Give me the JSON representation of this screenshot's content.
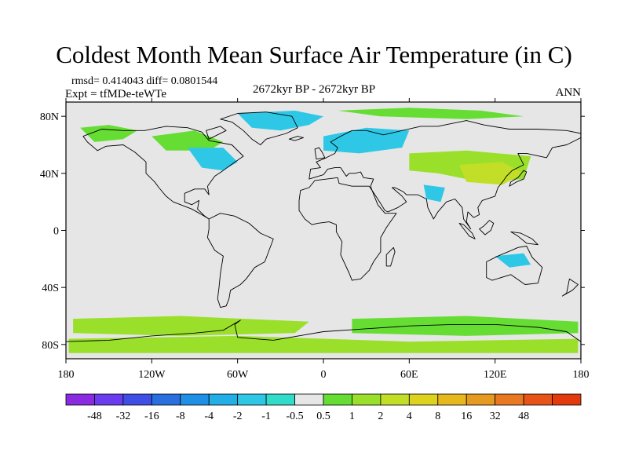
{
  "title": "Coldest Month Mean Surface Air Temperature (in C)",
  "stats_line": "rmsd= 0.414043  diff= 0.0801544",
  "experiment": "Expt = tfMDe-teWTe",
  "period": "2672kyr BP - 2672kyr BP",
  "season": "ANN",
  "map": {
    "lon_range": [
      -180,
      180
    ],
    "lat_range": [
      -90,
      90
    ],
    "background_color": "#e6e6e6",
    "lon_ticks": [
      {
        "value": -180,
        "label": "180"
      },
      {
        "value": -120,
        "label": "120W"
      },
      {
        "value": -60,
        "label": "60W"
      },
      {
        "value": 0,
        "label": "0"
      },
      {
        "value": 60,
        "label": "60E"
      },
      {
        "value": 120,
        "label": "120E"
      },
      {
        "value": 180,
        "label": "180"
      }
    ],
    "lat_ticks": [
      {
        "value": 80,
        "label": "80N"
      },
      {
        "value": 40,
        "label": "40N"
      },
      {
        "value": 0,
        "label": "0"
      },
      {
        "value": -40,
        "label": "40S"
      },
      {
        "value": -80,
        "label": "80S"
      }
    ]
  },
  "colorbar": {
    "colors": [
      "#8a2be2",
      "#6a3cf0",
      "#3f4fe6",
      "#2a6fe0",
      "#1e90e6",
      "#22aee6",
      "#2ec8e6",
      "#33dcc8",
      "#e6e6e6",
      "#66dd33",
      "#9ae02a",
      "#c2de26",
      "#ddd21e",
      "#e6b81e",
      "#e69a22",
      "#e87822",
      "#e85418",
      "#e23a0c"
    ],
    "labels": [
      "-48",
      "-32",
      "-16",
      "-8",
      "-4",
      "-2",
      "-1",
      "-0.5",
      "0.5",
      "1",
      "2",
      "4",
      "8",
      "16",
      "32",
      "48"
    ]
  },
  "regions": [
    {
      "name": "arctic-greenland",
      "color": "#2ec8e6",
      "points": [
        [
          -60,
          82
        ],
        [
          -20,
          84
        ],
        [
          0,
          80
        ],
        [
          -10,
          74
        ],
        [
          -30,
          70
        ],
        [
          -50,
          72
        ]
      ]
    },
    {
      "name": "arctic-siberia",
      "color": "#66dd33",
      "points": [
        [
          10,
          84
        ],
        [
          60,
          86
        ],
        [
          110,
          84
        ],
        [
          140,
          80
        ],
        [
          100,
          78
        ],
        [
          40,
          80
        ]
      ]
    },
    {
      "name": "alaska",
      "color": "#66dd33",
      "points": [
        [
          -170,
          72
        ],
        [
          -150,
          74
        ],
        [
          -130,
          70
        ],
        [
          -140,
          64
        ],
        [
          -160,
          62
        ]
      ]
    },
    {
      "name": "canada",
      "color": "#66dd33",
      "points": [
        [
          -120,
          66
        ],
        [
          -90,
          70
        ],
        [
          -70,
          62
        ],
        [
          -80,
          56
        ],
        [
          -110,
          56
        ]
      ]
    },
    {
      "name": "eastern-north-america",
      "color": "#2ec8e6",
      "points": [
        [
          -95,
          58
        ],
        [
          -70,
          58
        ],
        [
          -60,
          48
        ],
        [
          -70,
          42
        ],
        [
          -85,
          44
        ]
      ]
    },
    {
      "name": "scandinavia-europe",
      "color": "#2ec8e6",
      "points": [
        [
          0,
          66
        ],
        [
          30,
          72
        ],
        [
          60,
          70
        ],
        [
          55,
          58
        ],
        [
          25,
          54
        ],
        [
          0,
          56
        ]
      ]
    },
    {
      "name": "asia",
      "color": "#9ae02a",
      "points": [
        [
          60,
          54
        ],
        [
          100,
          56
        ],
        [
          145,
          52
        ],
        [
          140,
          36
        ],
        [
          110,
          34
        ],
        [
          80,
          40
        ],
        [
          60,
          42
        ]
      ]
    },
    {
      "name": "east-asia",
      "color": "#c2de26",
      "points": [
        [
          95,
          46
        ],
        [
          125,
          48
        ],
        [
          140,
          40
        ],
        [
          125,
          32
        ],
        [
          100,
          34
        ]
      ]
    },
    {
      "name": "india",
      "color": "#2ec8e6",
      "points": [
        [
          70,
          32
        ],
        [
          85,
          30
        ],
        [
          82,
          20
        ],
        [
          72,
          22
        ]
      ]
    },
    {
      "name": "australia",
      "color": "#2ec8e6",
      "points": [
        [
          120,
          -18
        ],
        [
          140,
          -16
        ],
        [
          145,
          -24
        ],
        [
          130,
          -26
        ]
      ]
    },
    {
      "name": "southern-ocean-west",
      "color": "#9ae02a",
      "points": [
        [
          -175,
          -62
        ],
        [
          -100,
          -60
        ],
        [
          -10,
          -64
        ],
        [
          -20,
          -72
        ],
        [
          -100,
          -74
        ],
        [
          -175,
          -72
        ]
      ]
    },
    {
      "name": "southern-ocean-east",
      "color": "#66dd33",
      "points": [
        [
          20,
          -62
        ],
        [
          100,
          -60
        ],
        [
          178,
          -64
        ],
        [
          178,
          -72
        ],
        [
          100,
          -74
        ],
        [
          20,
          -72
        ]
      ]
    },
    {
      "name": "antarctica",
      "color": "#9ae02a",
      "points": [
        [
          -178,
          -76
        ],
        [
          -60,
          -74
        ],
        [
          60,
          -78
        ],
        [
          178,
          -76
        ],
        [
          178,
          -86
        ],
        [
          -178,
          -86
        ]
      ]
    }
  ],
  "landmasses": [
    {
      "name": "north-america",
      "points": [
        [
          -168,
          66
        ],
        [
          -155,
          71
        ],
        [
          -140,
          70
        ],
        [
          -125,
          70
        ],
        [
          -110,
          73
        ],
        [
          -95,
          72
        ],
        [
          -85,
          69
        ],
        [
          -80,
          63
        ],
        [
          -64,
          60
        ],
        [
          -56,
          52
        ],
        [
          -66,
          45
        ],
        [
          -70,
          42
        ],
        [
          -76,
          38
        ],
        [
          -81,
          31
        ],
        [
          -80,
          25
        ],
        [
          -83,
          29
        ],
        [
          -90,
          29
        ],
        [
          -97,
          26
        ],
        [
          -97,
          20
        ],
        [
          -92,
          18
        ],
        [
          -87,
          21
        ],
        [
          -88,
          15
        ],
        [
          -83,
          10
        ],
        [
          -80,
          8
        ],
        [
          -85,
          11
        ],
        [
          -92,
          15
        ],
        [
          -105,
          20
        ],
        [
          -110,
          24
        ],
        [
          -115,
          30
        ],
        [
          -118,
          34
        ],
        [
          -124,
          40
        ],
        [
          -124,
          48
        ],
        [
          -132,
          55
        ],
        [
          -140,
          60
        ],
        [
          -152,
          59
        ],
        [
          -158,
          56
        ],
        [
          -165,
          62
        ]
      ]
    },
    {
      "name": "south-america",
      "points": [
        [
          -80,
          8
        ],
        [
          -72,
          12
        ],
        [
          -62,
          10
        ],
        [
          -52,
          5
        ],
        [
          -44,
          -2
        ],
        [
          -35,
          -6
        ],
        [
          -38,
          -14
        ],
        [
          -41,
          -22
        ],
        [
          -48,
          -26
        ],
        [
          -54,
          -34
        ],
        [
          -58,
          -38
        ],
        [
          -65,
          -42
        ],
        [
          -66,
          -48
        ],
        [
          -68,
          -53
        ],
        [
          -72,
          -54
        ],
        [
          -74,
          -48
        ],
        [
          -73,
          -40
        ],
        [
          -72,
          -30
        ],
        [
          -70,
          -18
        ],
        [
          -76,
          -14
        ],
        [
          -81,
          -5
        ],
        [
          -80,
          1
        ]
      ]
    },
    {
      "name": "greenland",
      "points": [
        [
          -72,
          78
        ],
        [
          -60,
          82
        ],
        [
          -40,
          83
        ],
        [
          -22,
          80
        ],
        [
          -18,
          72
        ],
        [
          -26,
          68
        ],
        [
          -40,
          64
        ],
        [
          -44,
          60
        ],
        [
          -50,
          64
        ],
        [
          -56,
          70
        ],
        [
          -64,
          76
        ]
      ]
    },
    {
      "name": "eurasia",
      "points": [
        [
          -10,
          36
        ],
        [
          -9,
          43
        ],
        [
          -2,
          44
        ],
        [
          -5,
          48
        ],
        [
          2,
          51
        ],
        [
          8,
          54
        ],
        [
          10,
          58
        ],
        [
          5,
          62
        ],
        [
          12,
          66
        ],
        [
          20,
          70
        ],
        [
          30,
          70
        ],
        [
          42,
          67
        ],
        [
          55,
          70
        ],
        [
          68,
          73
        ],
        [
          80,
          73
        ],
        [
          100,
          77
        ],
        [
          112,
          74
        ],
        [
          130,
          71
        ],
        [
          150,
          71
        ],
        [
          170,
          70
        ],
        [
          180,
          68
        ],
        [
          180,
          65
        ],
        [
          170,
          60
        ],
        [
          160,
          58
        ],
        [
          156,
          51
        ],
        [
          142,
          54
        ],
        [
          136,
          54
        ],
        [
          140,
          46
        ],
        [
          132,
          42
        ],
        [
          128,
          38
        ],
        [
          126,
          35
        ],
        [
          122,
          30
        ],
        [
          120,
          24
        ],
        [
          111,
          21
        ],
        [
          108,
          16
        ],
        [
          109,
          11
        ],
        [
          105,
          9
        ],
        [
          101,
          13
        ],
        [
          100,
          6
        ],
        [
          103,
          1
        ],
        [
          98,
          8
        ],
        [
          97,
          16
        ],
        [
          92,
          22
        ],
        [
          86,
          20
        ],
        [
          80,
          13
        ],
        [
          77,
          8
        ],
        [
          73,
          16
        ],
        [
          72,
          22
        ],
        [
          66,
          25
        ],
        [
          58,
          25
        ],
        [
          56,
          27
        ],
        [
          50,
          30
        ],
        [
          48,
          30
        ],
        [
          55,
          24
        ],
        [
          58,
          20
        ],
        [
          52,
          16
        ],
        [
          45,
          13
        ],
        [
          43,
          14
        ],
        [
          38,
          22
        ],
        [
          34,
          28
        ],
        [
          33,
          31
        ],
        [
          35,
          36
        ],
        [
          28,
          37
        ],
        [
          26,
          41
        ],
        [
          22,
          40
        ],
        [
          18,
          40
        ],
        [
          16,
          38
        ],
        [
          12,
          44
        ],
        [
          8,
          44
        ],
        [
          3,
          43
        ],
        [
          0,
          39
        ]
      ]
    },
    {
      "name": "africa",
      "points": [
        [
          -17,
          21
        ],
        [
          -16,
          28
        ],
        [
          -10,
          30
        ],
        [
          -6,
          35
        ],
        [
          10,
          37
        ],
        [
          11,
          33
        ],
        [
          20,
          31
        ],
        [
          32,
          31
        ],
        [
          34,
          28
        ],
        [
          38,
          18
        ],
        [
          43,
          12
        ],
        [
          51,
          12
        ],
        [
          44,
          2
        ],
        [
          40,
          -5
        ],
        [
          40,
          -15
        ],
        [
          35,
          -22
        ],
        [
          32,
          -28
        ],
        [
          26,
          -34
        ],
        [
          20,
          -35
        ],
        [
          18,
          -30
        ],
        [
          12,
          -17
        ],
        [
          13,
          -8
        ],
        [
          9,
          -1
        ],
        [
          9,
          4
        ],
        [
          4,
          6
        ],
        [
          -4,
          5
        ],
        [
          -8,
          4
        ],
        [
          -13,
          8
        ],
        [
          -17,
          14
        ]
      ]
    },
    {
      "name": "australia",
      "points": [
        [
          114,
          -22
        ],
        [
          122,
          -18
        ],
        [
          129,
          -15
        ],
        [
          136,
          -12
        ],
        [
          142,
          -11
        ],
        [
          146,
          -19
        ],
        [
          153,
          -26
        ],
        [
          150,
          -37
        ],
        [
          141,
          -38
        ],
        [
          131,
          -31
        ],
        [
          118,
          -35
        ],
        [
          114,
          -33
        ]
      ]
    },
    {
      "name": "antarctica",
      "points": [
        [
          -180,
          -78
        ],
        [
          -150,
          -77
        ],
        [
          -120,
          -74
        ],
        [
          -90,
          -72
        ],
        [
          -70,
          -70
        ],
        [
          -58,
          -63
        ],
        [
          -62,
          -66
        ],
        [
          -60,
          -75
        ],
        [
          -35,
          -77
        ],
        [
          0,
          -71
        ],
        [
          30,
          -69
        ],
        [
          60,
          -67
        ],
        [
          90,
          -66
        ],
        [
          120,
          -66
        ],
        [
          150,
          -68
        ],
        [
          170,
          -71
        ],
        [
          180,
          -78
        ],
        [
          180,
          -90
        ],
        [
          -180,
          -90
        ]
      ]
    },
    {
      "name": "madagascar",
      "points": [
        [
          44,
          -25
        ],
        [
          47,
          -25
        ],
        [
          50,
          -15
        ],
        [
          49,
          -12
        ],
        [
          44,
          -17
        ]
      ]
    },
    {
      "name": "great-britain",
      "points": [
        [
          -5,
          50
        ],
        [
          1,
          51
        ],
        [
          -1,
          55
        ],
        [
          -3,
          58
        ],
        [
          -6,
          57
        ]
      ]
    },
    {
      "name": "japan",
      "points": [
        [
          130,
          31
        ],
        [
          135,
          34
        ],
        [
          140,
          36
        ],
        [
          142,
          41
        ],
        [
          140,
          42
        ],
        [
          136,
          37
        ],
        [
          131,
          34
        ]
      ]
    },
    {
      "name": "new-zealand",
      "points": [
        [
          172,
          -34
        ],
        [
          178,
          -38
        ],
        [
          174,
          -42
        ],
        [
          167,
          -46
        ],
        [
          170,
          -44
        ]
      ]
    },
    {
      "name": "borneo",
      "points": [
        [
          109,
          1
        ],
        [
          113,
          -3
        ],
        [
          117,
          0
        ],
        [
          119,
          5
        ],
        [
          116,
          7
        ],
        [
          112,
          3
        ]
      ]
    },
    {
      "name": "sumatra",
      "points": [
        [
          95,
          5
        ],
        [
          98,
          4
        ],
        [
          104,
          -2
        ],
        [
          106,
          -6
        ],
        [
          102,
          -4
        ]
      ]
    },
    {
      "name": "new-guinea",
      "points": [
        [
          131,
          -1
        ],
        [
          138,
          -2
        ],
        [
          146,
          -6
        ],
        [
          150,
          -10
        ],
        [
          142,
          -9
        ],
        [
          136,
          -4
        ]
      ]
    },
    {
      "name": "iceland",
      "points": [
        [
          -24,
          64
        ],
        [
          -18,
          66
        ],
        [
          -14,
          65
        ],
        [
          -20,
          63
        ]
      ]
    },
    {
      "name": "baffin-island",
      "points": [
        [
          -80,
          64
        ],
        [
          -68,
          70
        ],
        [
          -72,
          73
        ],
        [
          -82,
          70
        ]
      ]
    }
  ]
}
